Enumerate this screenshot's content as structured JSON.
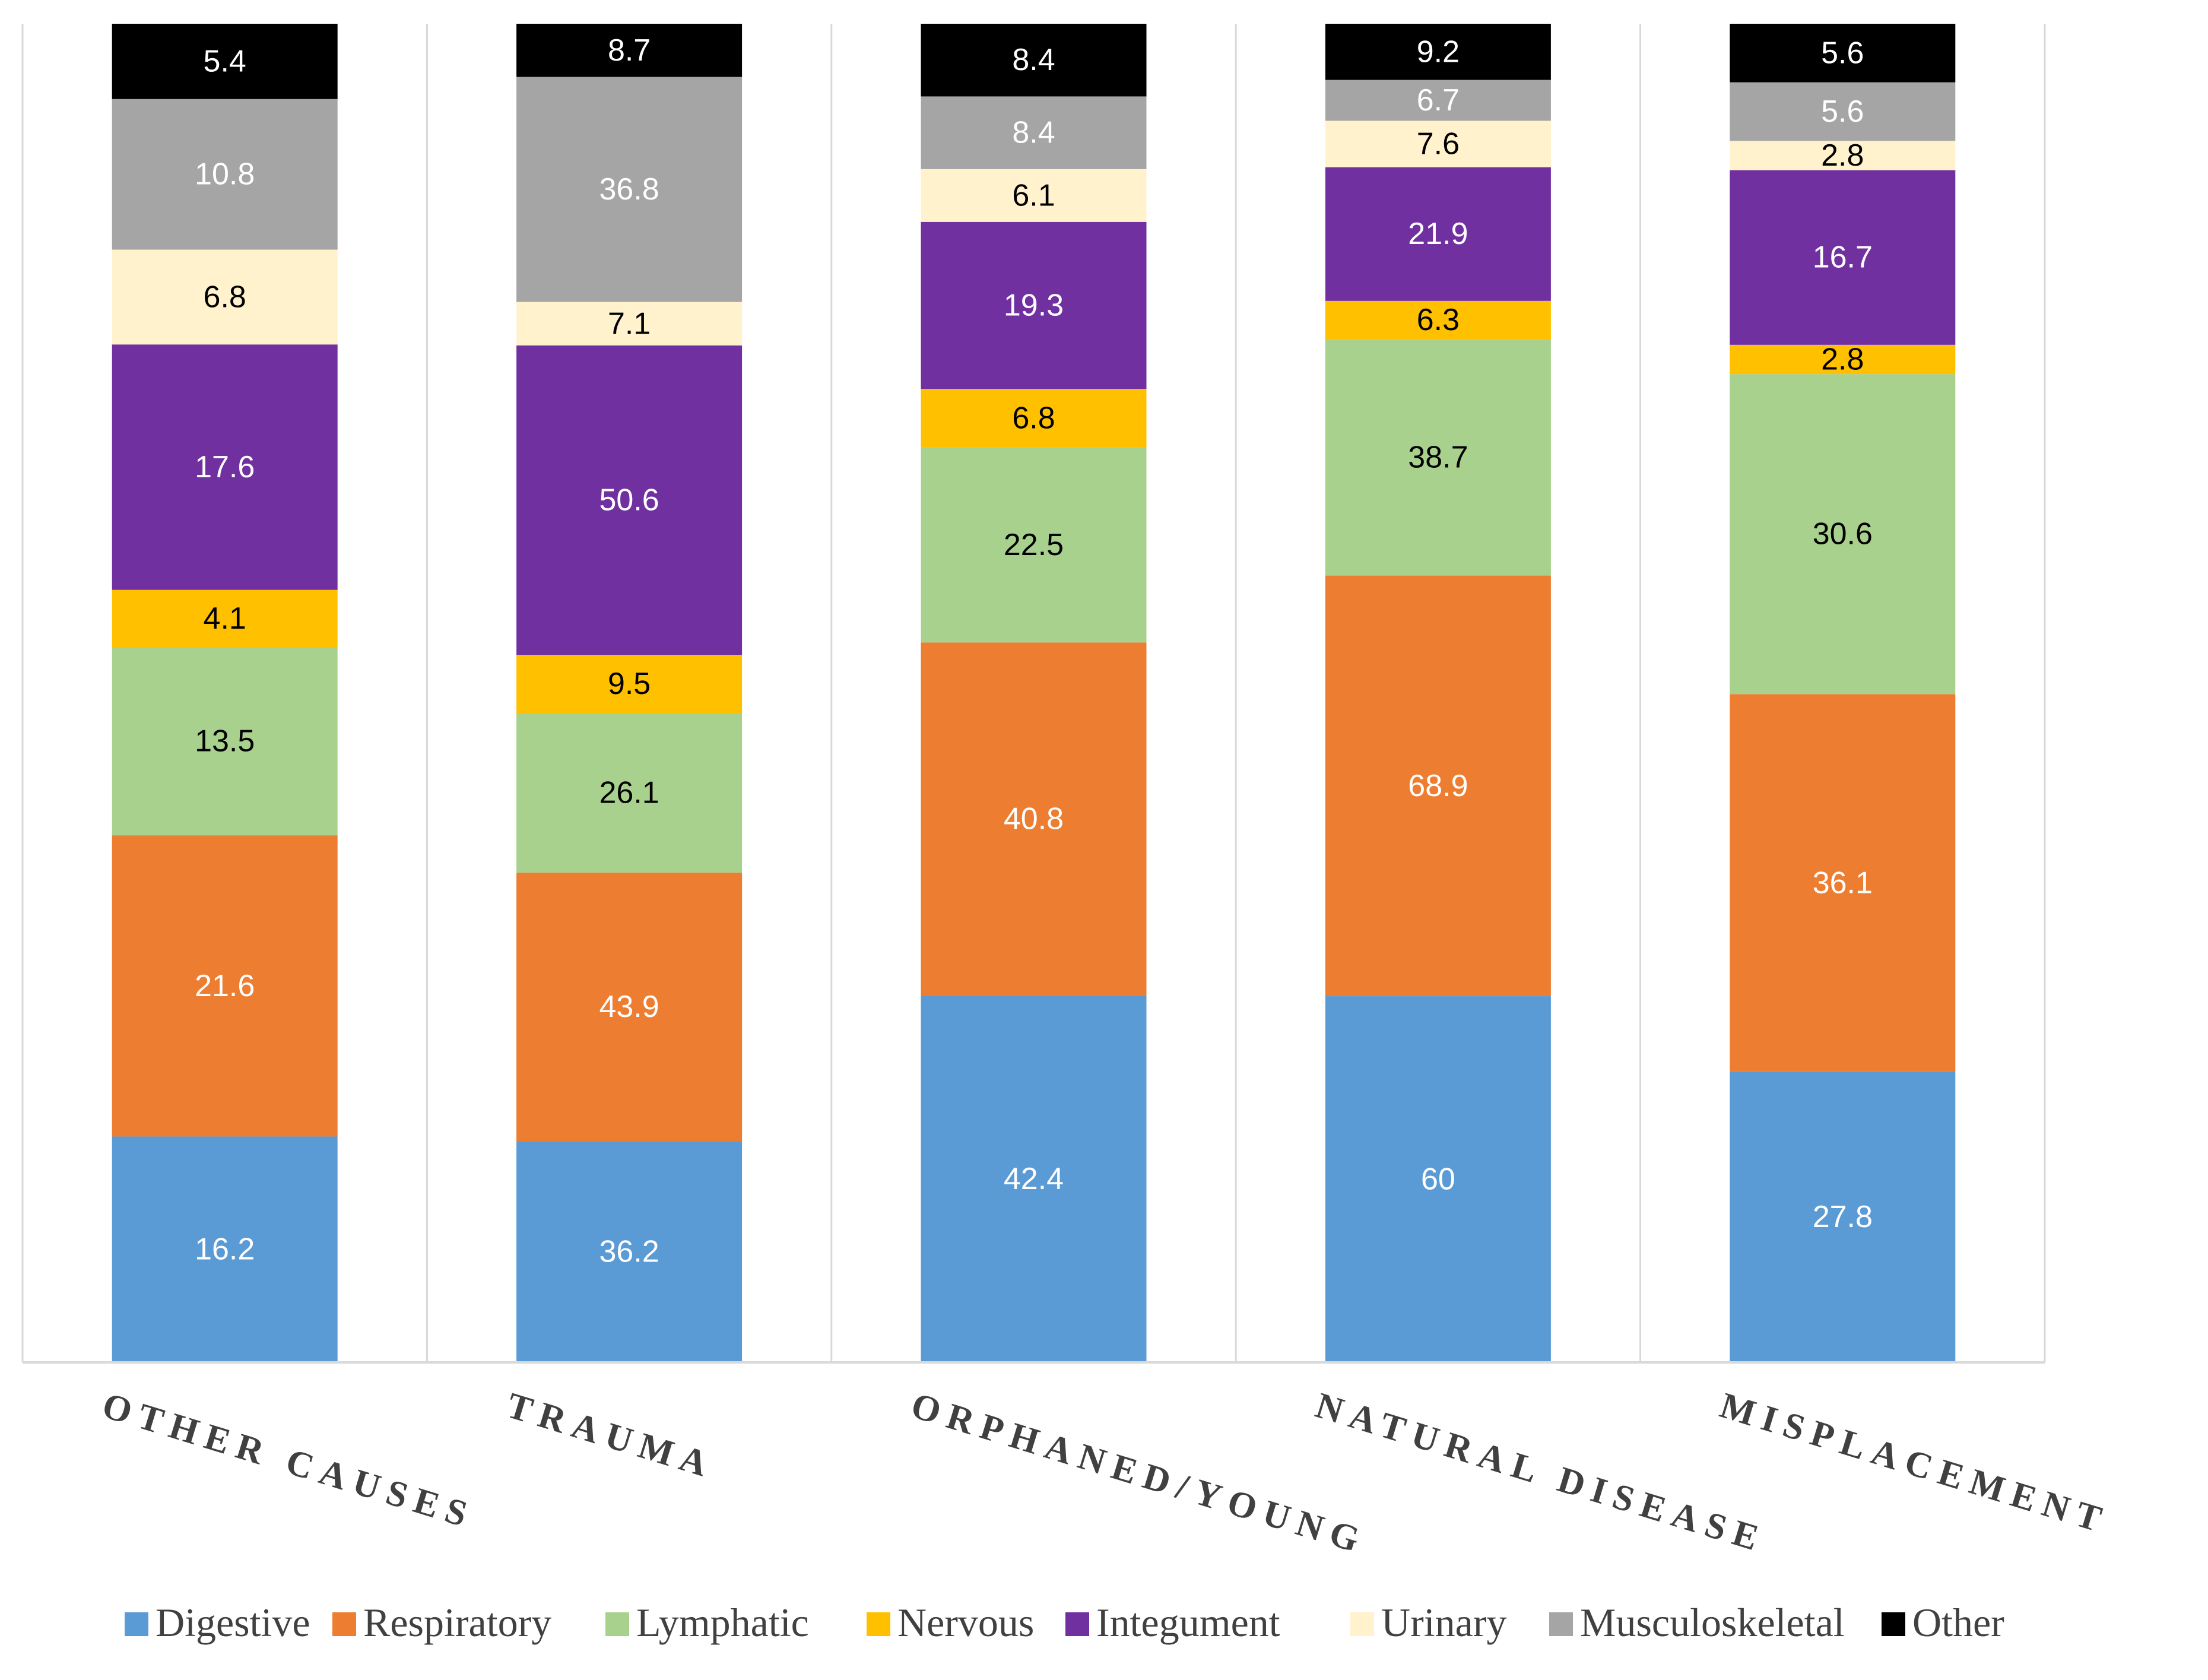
{
  "chart_data": {
    "type": "bar",
    "stacked": true,
    "percent_stacked": true,
    "title": "",
    "xlabel": "",
    "ylabel": "",
    "categories": [
      "OTHER CAUSES",
      "TRAUMA",
      "ORPHANED/YOUNG",
      "NATURAL DISEASE",
      "MISPLACEMENT"
    ],
    "series": [
      {
        "name": "Digestive",
        "color": "#5B9BD5",
        "label_color": "#ffffff",
        "values": [
          16.2,
          36.2,
          42.4,
          60,
          27.8
        ]
      },
      {
        "name": "Respiratory",
        "color": "#ED7D31",
        "label_color": "#ffffff",
        "values": [
          21.6,
          43.9,
          40.8,
          68.9,
          36.1
        ]
      },
      {
        "name": "Lymphatic",
        "color": "#A9D18E",
        "label_color": "#000000",
        "values": [
          13.5,
          26.1,
          22.5,
          38.7,
          30.6
        ]
      },
      {
        "name": "Nervous",
        "color": "#FFC000",
        "label_color": "#000000",
        "values": [
          4.1,
          9.5,
          6.8,
          6.3,
          2.8
        ]
      },
      {
        "name": "Integument",
        "color": "#7030A0",
        "label_color": "#ffffff",
        "values": [
          17.6,
          50.6,
          19.3,
          21.9,
          16.7
        ]
      },
      {
        "name": "Urinary",
        "color": "#FFF2CC",
        "label_color": "#000000",
        "values": [
          6.8,
          7.1,
          6.1,
          7.6,
          2.8
        ]
      },
      {
        "name": "Musculoskeletal",
        "color": "#A5A5A5",
        "label_color": "#ffffff",
        "values": [
          10.8,
          36.8,
          8.4,
          6.7,
          5.6
        ]
      },
      {
        "name": "Other",
        "color": "#000000",
        "label_color": "#ffffff",
        "values": [
          5.4,
          8.7,
          8.4,
          9.2,
          5.6
        ]
      }
    ],
    "legend_position": "bottom",
    "grid": false
  }
}
